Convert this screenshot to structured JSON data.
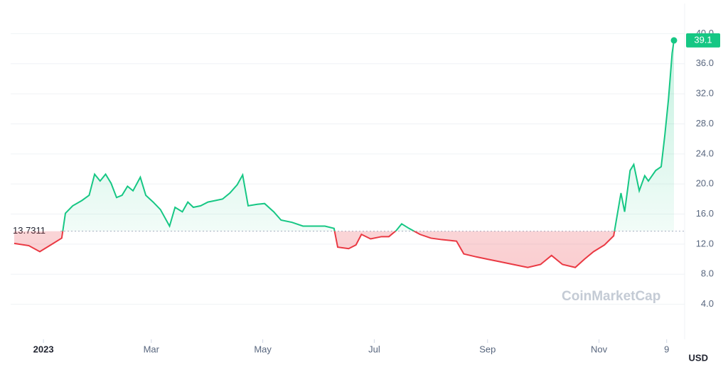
{
  "chart_data": {
    "type": "line",
    "x": [
      -16,
      -8,
      -2,
      4,
      10,
      12,
      16,
      21,
      25,
      28,
      31,
      34,
      37,
      40,
      43,
      46,
      49,
      53,
      56,
      60,
      64,
      69,
      72,
      76,
      79,
      82,
      86,
      90,
      94,
      98,
      102,
      106,
      109,
      112,
      117,
      121,
      126,
      130,
      136,
      142,
      148,
      154,
      159,
      161,
      167,
      171,
      174,
      179,
      185,
      189,
      193,
      196,
      200,
      206,
      212,
      218,
      226,
      230,
      237,
      243,
      249,
      257,
      265,
      272,
      278,
      284,
      291,
      296,
      301,
      307,
      312,
      316,
      318,
      321,
      323,
      326,
      329,
      331,
      335,
      338,
      340,
      342,
      344,
      345
    ],
    "values": [
      12.1,
      11.8,
      11.0,
      11.9,
      12.8,
      16.1,
      17.1,
      17.8,
      18.5,
      21.3,
      20.4,
      21.3,
      20.1,
      18.2,
      18.5,
      19.7,
      19.1,
      20.9,
      18.5,
      17.6,
      16.6,
      14.4,
      16.9,
      16.3,
      17.6,
      16.9,
      17.1,
      17.6,
      17.8,
      18.0,
      18.8,
      19.9,
      21.2,
      17.1,
      17.3,
      17.4,
      16.3,
      15.2,
      14.9,
      14.4,
      14.4,
      14.4,
      14.1,
      11.6,
      11.4,
      11.9,
      13.3,
      12.7,
      13.0,
      13.0,
      13.8,
      14.7,
      14.1,
      13.3,
      12.8,
      12.6,
      12.4,
      10.7,
      10.3,
      10.0,
      9.7,
      9.3,
      8.9,
      9.3,
      10.5,
      9.3,
      8.9,
      10.0,
      11.0,
      11.9,
      13.1,
      18.8,
      16.3,
      21.8,
      22.6,
      19.1,
      21.1,
      20.4,
      21.8,
      22.3,
      26.5,
      31.3,
      37.4,
      39.1
    ],
    "baseline": 13.7311,
    "up_color": "#16c784",
    "down_color": "#ea3943",
    "xlim": [
      -16,
      345
    ],
    "xticks": [
      {
        "value": 0,
        "label": "2023"
      },
      {
        "value": 59,
        "label": "Mar"
      },
      {
        "value": 120,
        "label": "May"
      },
      {
        "value": 181,
        "label": "Jul"
      },
      {
        "value": 243,
        "label": "Sep"
      },
      {
        "value": 304,
        "label": "Nov"
      },
      {
        "value": 341,
        "label": "9"
      }
    ],
    "ylim": [
      0,
      44
    ],
    "yticks": [
      {
        "value": 4,
        "label": "4.0"
      },
      {
        "value": 8,
        "label": "8.0"
      },
      {
        "value": 12,
        "label": "12.0"
      },
      {
        "value": 16,
        "label": "16.0"
      },
      {
        "value": 20,
        "label": "20.0"
      },
      {
        "value": 24,
        "label": "24.0"
      },
      {
        "value": 28,
        "label": "28.0"
      },
      {
        "value": 32,
        "label": "32.0"
      },
      {
        "value": 36,
        "label": "36.0"
      },
      {
        "value": 40,
        "label": "40.0"
      }
    ],
    "grid": true,
    "currency": "USD",
    "watermark": "CoinMarketCap"
  }
}
